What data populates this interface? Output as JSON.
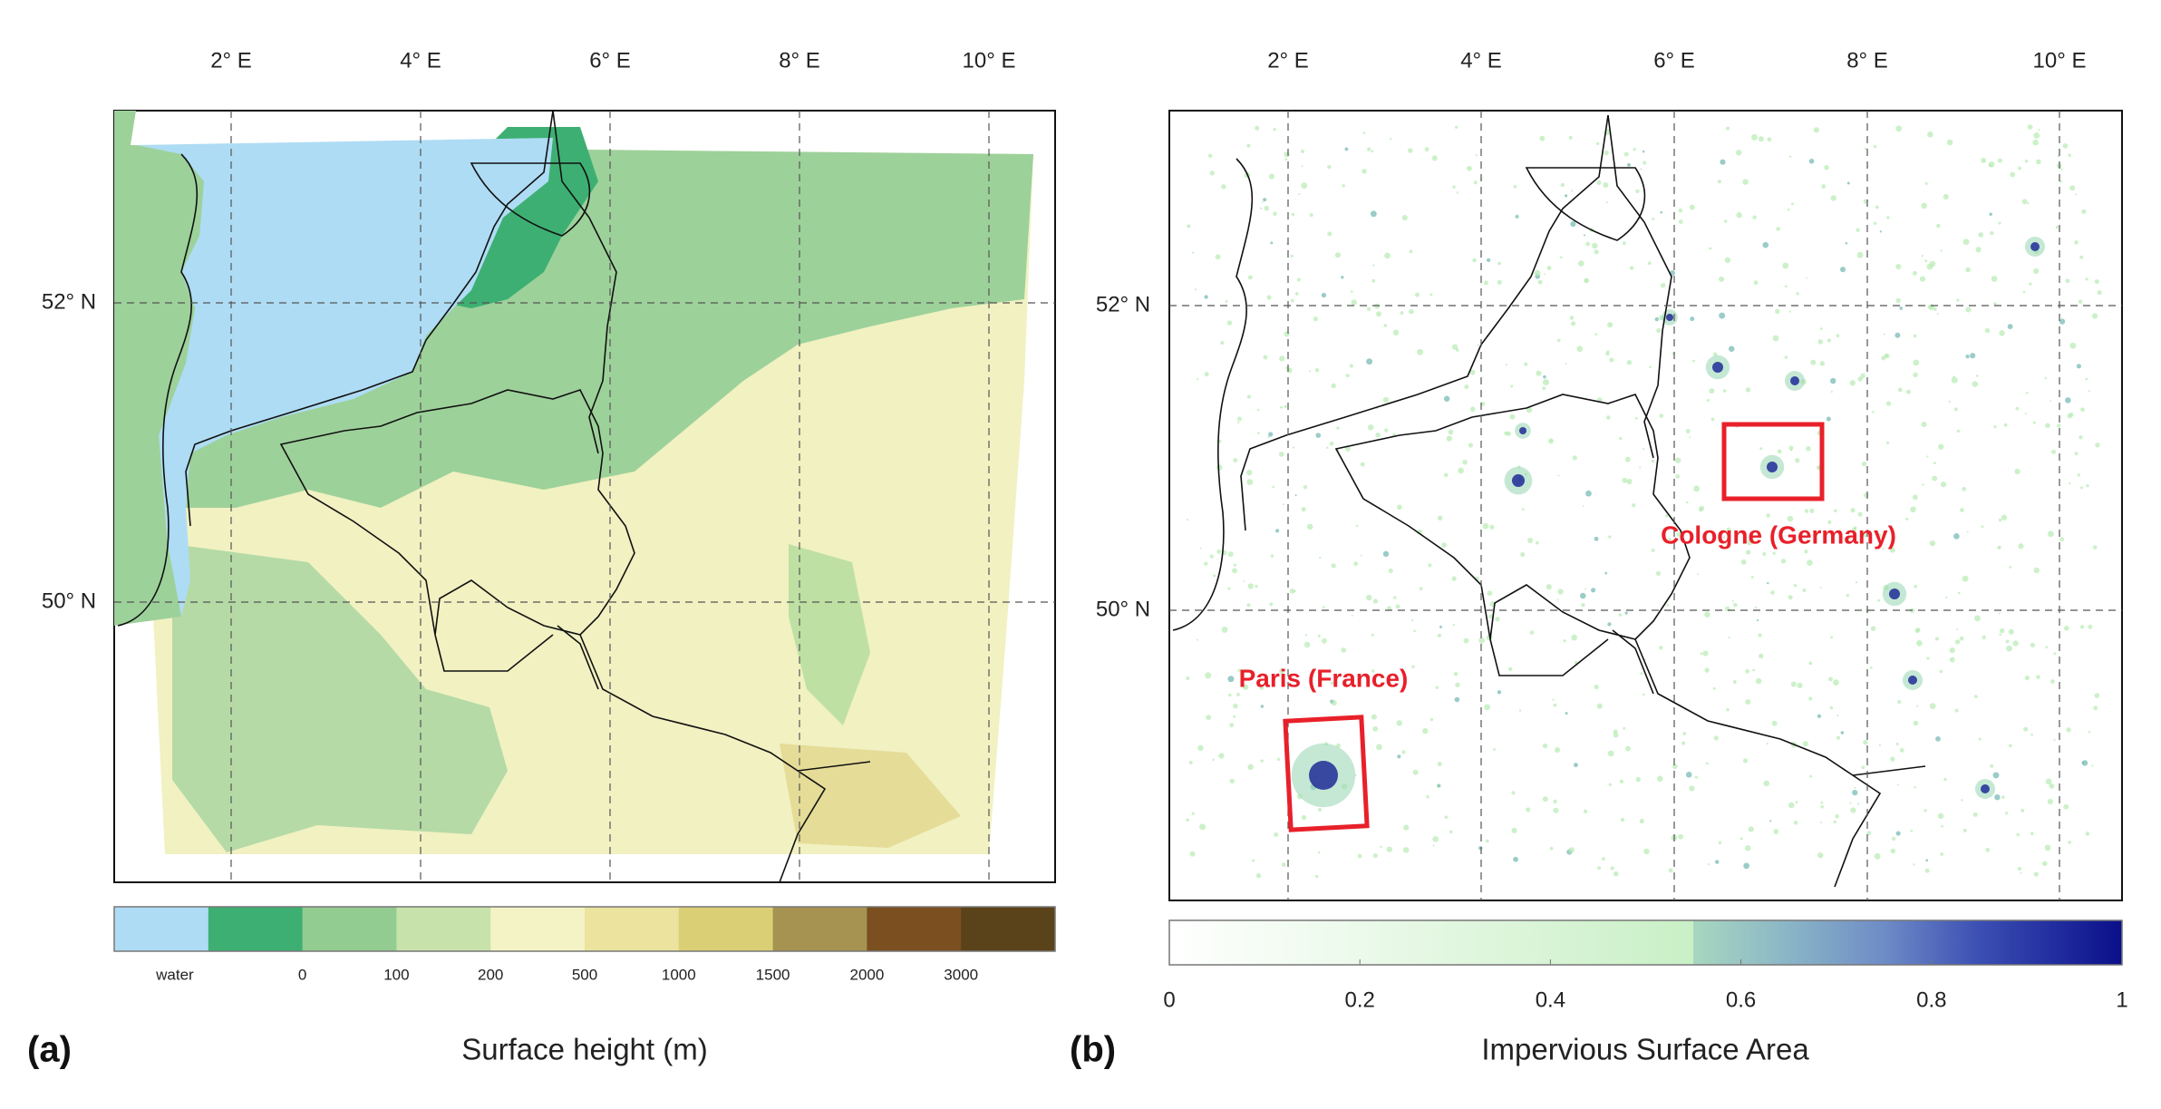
{
  "panel_a": {
    "label": "(a)",
    "lon_labels": [
      "2° E",
      "4° E",
      "6° E",
      "8° E",
      "10° E"
    ],
    "lat_labels": [
      "52° N",
      "50° N"
    ],
    "colorbar": {
      "title": "Surface height (m)",
      "labels": [
        "water",
        "0",
        "100",
        "200",
        "500",
        "1000",
        "1500",
        "2000",
        "3000"
      ],
      "colors": [
        "#aedcf4",
        "#3daf72",
        "#92cc91",
        "#c7e2aa",
        "#f3f3c6",
        "#ebe39e",
        "#dbcf76",
        "#a69352",
        "#7b4f20",
        "#5a431a"
      ]
    }
  },
  "panel_b": {
    "label": "(b)",
    "lon_labels": [
      "2° E",
      "4° E",
      "6° E",
      "8° E",
      "10° E"
    ],
    "lat_labels": [
      "52° N",
      "50° N"
    ],
    "annotations": [
      "Paris (France)",
      "Cologne (Germany)"
    ],
    "colorbar": {
      "title": "Impervious Surface Area",
      "lim": [
        0,
        1
      ],
      "ticks": [
        0,
        0.2,
        0.4,
        0.6,
        0.8,
        1
      ]
    }
  }
}
